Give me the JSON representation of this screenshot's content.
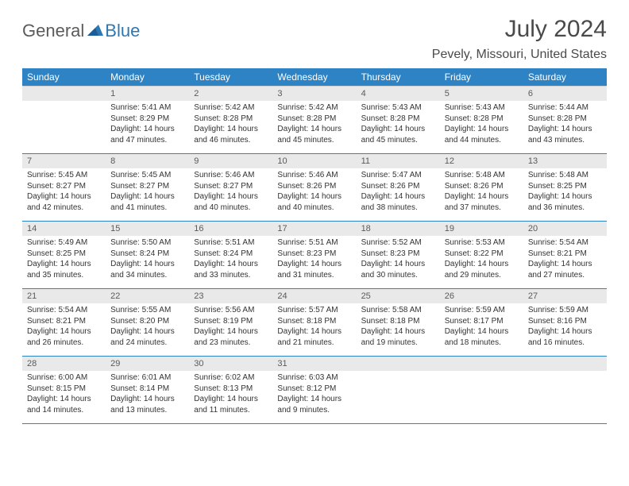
{
  "brand": {
    "part1": "General",
    "part2": "Blue"
  },
  "title": "July 2024",
  "location": "Pevely, Missouri, United States",
  "colors": {
    "header_bg": "#2e83c4",
    "header_text": "#ffffff",
    "daynum_bg": "#e9e9e9",
    "daynum_text": "#5a5a5a",
    "cell_text": "#333333",
    "rule": "#2e83c4",
    "title_text": "#4a4a4a",
    "logo_gray": "#5b5b5b",
    "logo_blue": "#2e77b5"
  },
  "dow": [
    "Sunday",
    "Monday",
    "Tuesday",
    "Wednesday",
    "Thursday",
    "Friday",
    "Saturday"
  ],
  "weeks": [
    {
      "nums": [
        "",
        "1",
        "2",
        "3",
        "4",
        "5",
        "6"
      ],
      "cells": [
        null,
        {
          "sr": "Sunrise: 5:41 AM",
          "ss": "Sunset: 8:29 PM",
          "d1": "Daylight: 14 hours",
          "d2": "and 47 minutes."
        },
        {
          "sr": "Sunrise: 5:42 AM",
          "ss": "Sunset: 8:28 PM",
          "d1": "Daylight: 14 hours",
          "d2": "and 46 minutes."
        },
        {
          "sr": "Sunrise: 5:42 AM",
          "ss": "Sunset: 8:28 PM",
          "d1": "Daylight: 14 hours",
          "d2": "and 45 minutes."
        },
        {
          "sr": "Sunrise: 5:43 AM",
          "ss": "Sunset: 8:28 PM",
          "d1": "Daylight: 14 hours",
          "d2": "and 45 minutes."
        },
        {
          "sr": "Sunrise: 5:43 AM",
          "ss": "Sunset: 8:28 PM",
          "d1": "Daylight: 14 hours",
          "d2": "and 44 minutes."
        },
        {
          "sr": "Sunrise: 5:44 AM",
          "ss": "Sunset: 8:28 PM",
          "d1": "Daylight: 14 hours",
          "d2": "and 43 minutes."
        }
      ]
    },
    {
      "nums": [
        "7",
        "8",
        "9",
        "10",
        "11",
        "12",
        "13"
      ],
      "cells": [
        {
          "sr": "Sunrise: 5:45 AM",
          "ss": "Sunset: 8:27 PM",
          "d1": "Daylight: 14 hours",
          "d2": "and 42 minutes."
        },
        {
          "sr": "Sunrise: 5:45 AM",
          "ss": "Sunset: 8:27 PM",
          "d1": "Daylight: 14 hours",
          "d2": "and 41 minutes."
        },
        {
          "sr": "Sunrise: 5:46 AM",
          "ss": "Sunset: 8:27 PM",
          "d1": "Daylight: 14 hours",
          "d2": "and 40 minutes."
        },
        {
          "sr": "Sunrise: 5:46 AM",
          "ss": "Sunset: 8:26 PM",
          "d1": "Daylight: 14 hours",
          "d2": "and 40 minutes."
        },
        {
          "sr": "Sunrise: 5:47 AM",
          "ss": "Sunset: 8:26 PM",
          "d1": "Daylight: 14 hours",
          "d2": "and 38 minutes."
        },
        {
          "sr": "Sunrise: 5:48 AM",
          "ss": "Sunset: 8:26 PM",
          "d1": "Daylight: 14 hours",
          "d2": "and 37 minutes."
        },
        {
          "sr": "Sunrise: 5:48 AM",
          "ss": "Sunset: 8:25 PM",
          "d1": "Daylight: 14 hours",
          "d2": "and 36 minutes."
        }
      ]
    },
    {
      "nums": [
        "14",
        "15",
        "16",
        "17",
        "18",
        "19",
        "20"
      ],
      "cells": [
        {
          "sr": "Sunrise: 5:49 AM",
          "ss": "Sunset: 8:25 PM",
          "d1": "Daylight: 14 hours",
          "d2": "and 35 minutes."
        },
        {
          "sr": "Sunrise: 5:50 AM",
          "ss": "Sunset: 8:24 PM",
          "d1": "Daylight: 14 hours",
          "d2": "and 34 minutes."
        },
        {
          "sr": "Sunrise: 5:51 AM",
          "ss": "Sunset: 8:24 PM",
          "d1": "Daylight: 14 hours",
          "d2": "and 33 minutes."
        },
        {
          "sr": "Sunrise: 5:51 AM",
          "ss": "Sunset: 8:23 PM",
          "d1": "Daylight: 14 hours",
          "d2": "and 31 minutes."
        },
        {
          "sr": "Sunrise: 5:52 AM",
          "ss": "Sunset: 8:23 PM",
          "d1": "Daylight: 14 hours",
          "d2": "and 30 minutes."
        },
        {
          "sr": "Sunrise: 5:53 AM",
          "ss": "Sunset: 8:22 PM",
          "d1": "Daylight: 14 hours",
          "d2": "and 29 minutes."
        },
        {
          "sr": "Sunrise: 5:54 AM",
          "ss": "Sunset: 8:21 PM",
          "d1": "Daylight: 14 hours",
          "d2": "and 27 minutes."
        }
      ]
    },
    {
      "nums": [
        "21",
        "22",
        "23",
        "24",
        "25",
        "26",
        "27"
      ],
      "cells": [
        {
          "sr": "Sunrise: 5:54 AM",
          "ss": "Sunset: 8:21 PM",
          "d1": "Daylight: 14 hours",
          "d2": "and 26 minutes."
        },
        {
          "sr": "Sunrise: 5:55 AM",
          "ss": "Sunset: 8:20 PM",
          "d1": "Daylight: 14 hours",
          "d2": "and 24 minutes."
        },
        {
          "sr": "Sunrise: 5:56 AM",
          "ss": "Sunset: 8:19 PM",
          "d1": "Daylight: 14 hours",
          "d2": "and 23 minutes."
        },
        {
          "sr": "Sunrise: 5:57 AM",
          "ss": "Sunset: 8:18 PM",
          "d1": "Daylight: 14 hours",
          "d2": "and 21 minutes."
        },
        {
          "sr": "Sunrise: 5:58 AM",
          "ss": "Sunset: 8:18 PM",
          "d1": "Daylight: 14 hours",
          "d2": "and 19 minutes."
        },
        {
          "sr": "Sunrise: 5:59 AM",
          "ss": "Sunset: 8:17 PM",
          "d1": "Daylight: 14 hours",
          "d2": "and 18 minutes."
        },
        {
          "sr": "Sunrise: 5:59 AM",
          "ss": "Sunset: 8:16 PM",
          "d1": "Daylight: 14 hours",
          "d2": "and 16 minutes."
        }
      ]
    },
    {
      "nums": [
        "28",
        "29",
        "30",
        "31",
        "",
        "",
        ""
      ],
      "cells": [
        {
          "sr": "Sunrise: 6:00 AM",
          "ss": "Sunset: 8:15 PM",
          "d1": "Daylight: 14 hours",
          "d2": "and 14 minutes."
        },
        {
          "sr": "Sunrise: 6:01 AM",
          "ss": "Sunset: 8:14 PM",
          "d1": "Daylight: 14 hours",
          "d2": "and 13 minutes."
        },
        {
          "sr": "Sunrise: 6:02 AM",
          "ss": "Sunset: 8:13 PM",
          "d1": "Daylight: 14 hours",
          "d2": "and 11 minutes."
        },
        {
          "sr": "Sunrise: 6:03 AM",
          "ss": "Sunset: 8:12 PM",
          "d1": "Daylight: 14 hours",
          "d2": "and 9 minutes."
        },
        null,
        null,
        null
      ]
    }
  ]
}
